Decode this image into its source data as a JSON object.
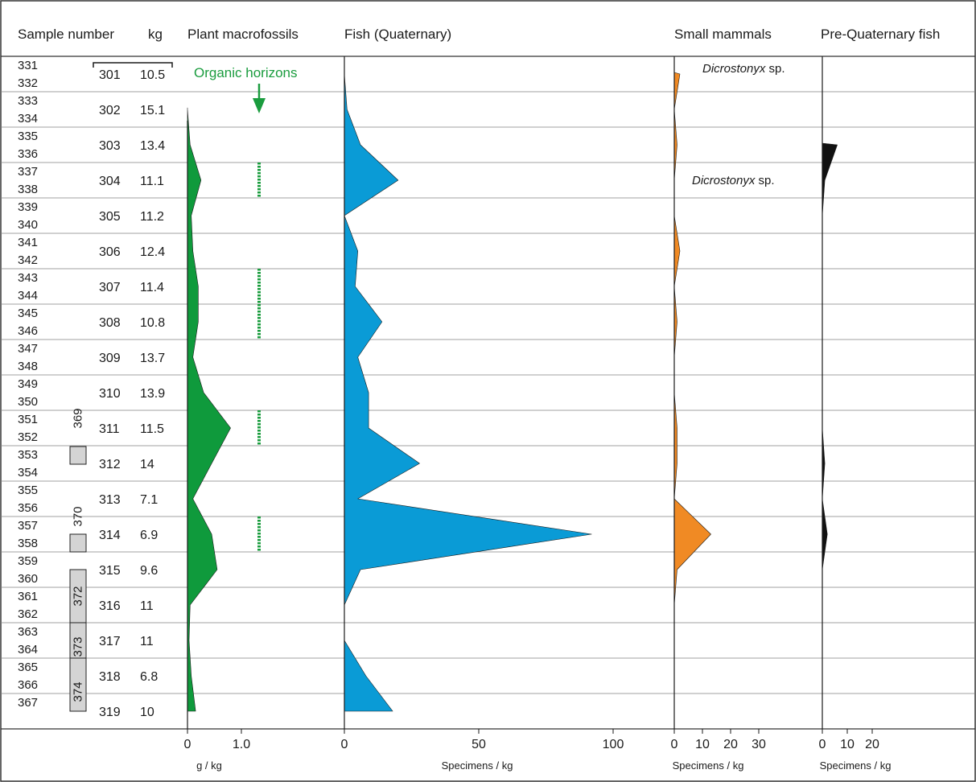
{
  "headers": {
    "sample": "Sample number",
    "kg": "kg",
    "plant": "Plant macrofossils",
    "fish": "Fish (Quaternary)",
    "mammals": "Small mammals",
    "prefish": "Pre-Quaternary fish"
  },
  "sample_numbers": [
    "331",
    "332",
    "333",
    "334",
    "335",
    "336",
    "337",
    "338",
    "339",
    "340",
    "341",
    "342",
    "343",
    "344",
    "345",
    "346",
    "347",
    "348",
    "349",
    "350",
    "351",
    "352",
    "353",
    "354",
    "355",
    "356",
    "357",
    "358",
    "359",
    "360",
    "361",
    "362",
    "363",
    "364",
    "365",
    "366",
    "367"
  ],
  "core_labels": [
    "369",
    "370",
    "372",
    "373",
    "374"
  ],
  "organic_label": "Organic horizons",
  "dicrostonyx": {
    "genus": "Dicrostonyx",
    "suffix": " sp."
  },
  "axes": {
    "plant": {
      "ticks": [
        "0",
        "1.0"
      ],
      "unit": "g / kg"
    },
    "fish": {
      "ticks": [
        "0",
        "50",
        "100"
      ],
      "unit": "Specimens / kg"
    },
    "mammals": {
      "ticks": [
        "0",
        "10",
        "20",
        "30"
      ],
      "unit": "Specimens / kg"
    },
    "prefish": {
      "ticks": [
        "0",
        "10",
        "20"
      ],
      "unit": "Specimens / kg"
    }
  },
  "colors": {
    "plant": "#0f9a3c",
    "fish": "#0a9bd6",
    "mammals": "#f08a24",
    "prefish": "#111111",
    "core_fill": "#d4d4d4",
    "organic": "#1a9c3e",
    "grid": "#808080"
  },
  "chart_data": {
    "type": "area",
    "x": [
      "301",
      "302",
      "303",
      "304",
      "305",
      "306",
      "307",
      "308",
      "309",
      "310",
      "311",
      "312",
      "313",
      "314",
      "315",
      "316",
      "317",
      "318",
      "319"
    ],
    "kg": [
      "10.5",
      "15.1",
      "13.4",
      "11.1",
      "11.2",
      "12.4",
      "11.4",
      "10.8",
      "13.7",
      "13.9",
      "11.5",
      "14",
      "7.1",
      "6.9",
      "9.6",
      "11",
      "11",
      "6.8",
      "10"
    ],
    "series": [
      {
        "key": "plant",
        "unit": "g / kg",
        "xlim": [
          0,
          1.5
        ],
        "values": [
          null,
          0,
          0.05,
          0.25,
          0.07,
          0.1,
          0.2,
          0.2,
          0.1,
          0.3,
          0.8,
          0.45,
          0.1,
          0.45,
          0.55,
          0.05,
          0.03,
          0.07,
          0.15
        ]
      },
      {
        "key": "fish",
        "unit": "Specimens / kg",
        "xlim": [
          0,
          120
        ],
        "values": [
          0,
          1,
          6,
          20,
          0,
          5,
          4,
          14,
          5,
          9,
          9,
          28,
          5,
          92,
          6,
          0,
          0,
          8,
          18
        ]
      },
      {
        "key": "mammals",
        "unit": "Specimens / kg",
        "xlim": [
          0,
          30
        ],
        "values": [
          2,
          0,
          1,
          0,
          0,
          2,
          0,
          1,
          0,
          0,
          1,
          1,
          0,
          13,
          1,
          0,
          null,
          null,
          null
        ]
      },
      {
        "key": "prefish",
        "unit": "Specimens / kg",
        "xlim": [
          0,
          30
        ],
        "values": [
          null,
          null,
          6,
          1,
          0,
          0,
          0,
          0,
          0,
          0,
          0,
          1,
          0,
          2,
          0,
          null,
          null,
          null,
          null
        ]
      }
    ],
    "organic_horizons": [
      "304",
      "307",
      "308",
      "311",
      "314"
    ],
    "dicrostonyx_samples": [
      "301",
      "304"
    ]
  }
}
